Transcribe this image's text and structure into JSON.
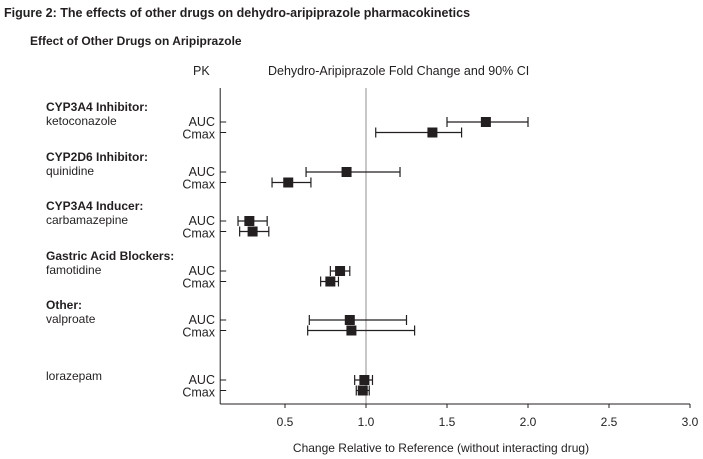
{
  "chart_data": {
    "type": "forest",
    "figure_title": "Figure 2:   The effects of other drugs on dehydro-aripiprazole pharmacokinetics",
    "subtitle": "Effect of Other Drugs on Aripiprazole",
    "pk_header": "PK",
    "title": "Dehydro-Aripiprazole Fold Change and 90% CI",
    "xlabel": "Change Relative to Reference (without interacting drug)",
    "xlim": [
      0.1,
      3.0
    ],
    "xticks": [
      "0.5",
      "1.0",
      "1.5",
      "2.0",
      "2.5",
      "3.0"
    ],
    "reference_line": 1.0,
    "reference_color": "#c8c8c8",
    "marker_color": "#231f20",
    "groups": [
      {
        "category": "CYP3A4 Inhibitor:",
        "drug": "ketoconazole",
        "rows": [
          {
            "pk": "AUC",
            "value": 1.74,
            "ci": [
              1.5,
              2.0
            ]
          },
          {
            "pk": "Cmax",
            "value": 1.41,
            "ci": [
              1.06,
              1.59
            ]
          }
        ]
      },
      {
        "category": "CYP2D6 Inhibitor:",
        "drug": "quinidine",
        "rows": [
          {
            "pk": "AUC",
            "value": 0.88,
            "ci": [
              0.63,
              1.21
            ]
          },
          {
            "pk": "Cmax",
            "value": 0.52,
            "ci": [
              0.42,
              0.66
            ]
          }
        ]
      },
      {
        "category": "CYP3A4 Inducer:",
        "drug": "carbamazepine",
        "rows": [
          {
            "pk": "AUC",
            "value": 0.28,
            "ci": [
              0.21,
              0.39
            ]
          },
          {
            "pk": "Cmax",
            "value": 0.3,
            "ci": [
              0.22,
              0.4
            ]
          }
        ]
      },
      {
        "category": "Gastric Acid Blockers:",
        "drug": "famotidine",
        "rows": [
          {
            "pk": "AUC",
            "value": 0.84,
            "ci": [
              0.78,
              0.9
            ]
          },
          {
            "pk": "Cmax",
            "value": 0.78,
            "ci": [
              0.72,
              0.83
            ]
          }
        ]
      },
      {
        "category": "Other:",
        "drug": "valproate",
        "rows": [
          {
            "pk": "AUC",
            "value": 0.9,
            "ci": [
              0.65,
              1.25
            ]
          },
          {
            "pk": "Cmax",
            "value": 0.91,
            "ci": [
              0.64,
              1.3
            ]
          }
        ]
      },
      {
        "category": "",
        "drug": "lorazepam",
        "rows": [
          {
            "pk": "AUC",
            "value": 0.99,
            "ci": [
              0.93,
              1.04
            ]
          },
          {
            "pk": "Cmax",
            "value": 0.98,
            "ci": [
              0.94,
              1.02
            ]
          }
        ]
      }
    ]
  }
}
